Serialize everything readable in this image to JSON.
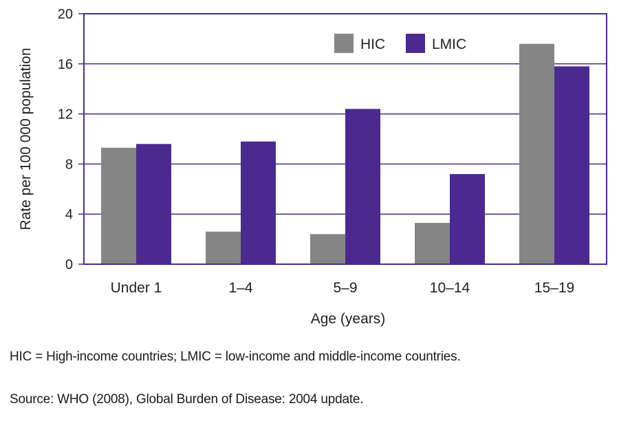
{
  "chart_data": {
    "type": "bar",
    "categories": [
      "Under 1",
      "1–4",
      "5–9",
      "10–14",
      "15–19"
    ],
    "series": [
      {
        "name": "HIC",
        "color": "#858585",
        "values": [
          9.3,
          2.6,
          2.4,
          3.3,
          17.6
        ]
      },
      {
        "name": "LMIC",
        "color": "#4b2a90",
        "values": [
          9.6,
          9.8,
          12.4,
          7.2,
          15.8
        ]
      }
    ],
    "yticks": [
      0,
      4,
      8,
      12,
      16,
      20
    ],
    "ylim": [
      0,
      20
    ],
    "ylabel": "Rate per 100 000 population",
    "xlabel": "Age (years)",
    "grid": true,
    "legend": "top-right"
  },
  "notes": {
    "abbreviations": "HIC = High-income countries; LMIC = low-income and middle-income countries.",
    "source": "Source: WHO (2008), Global Burden of Disease: 2004 update."
  },
  "colors": {
    "frame": "#4b2a90",
    "grid": "#4b2a90"
  }
}
